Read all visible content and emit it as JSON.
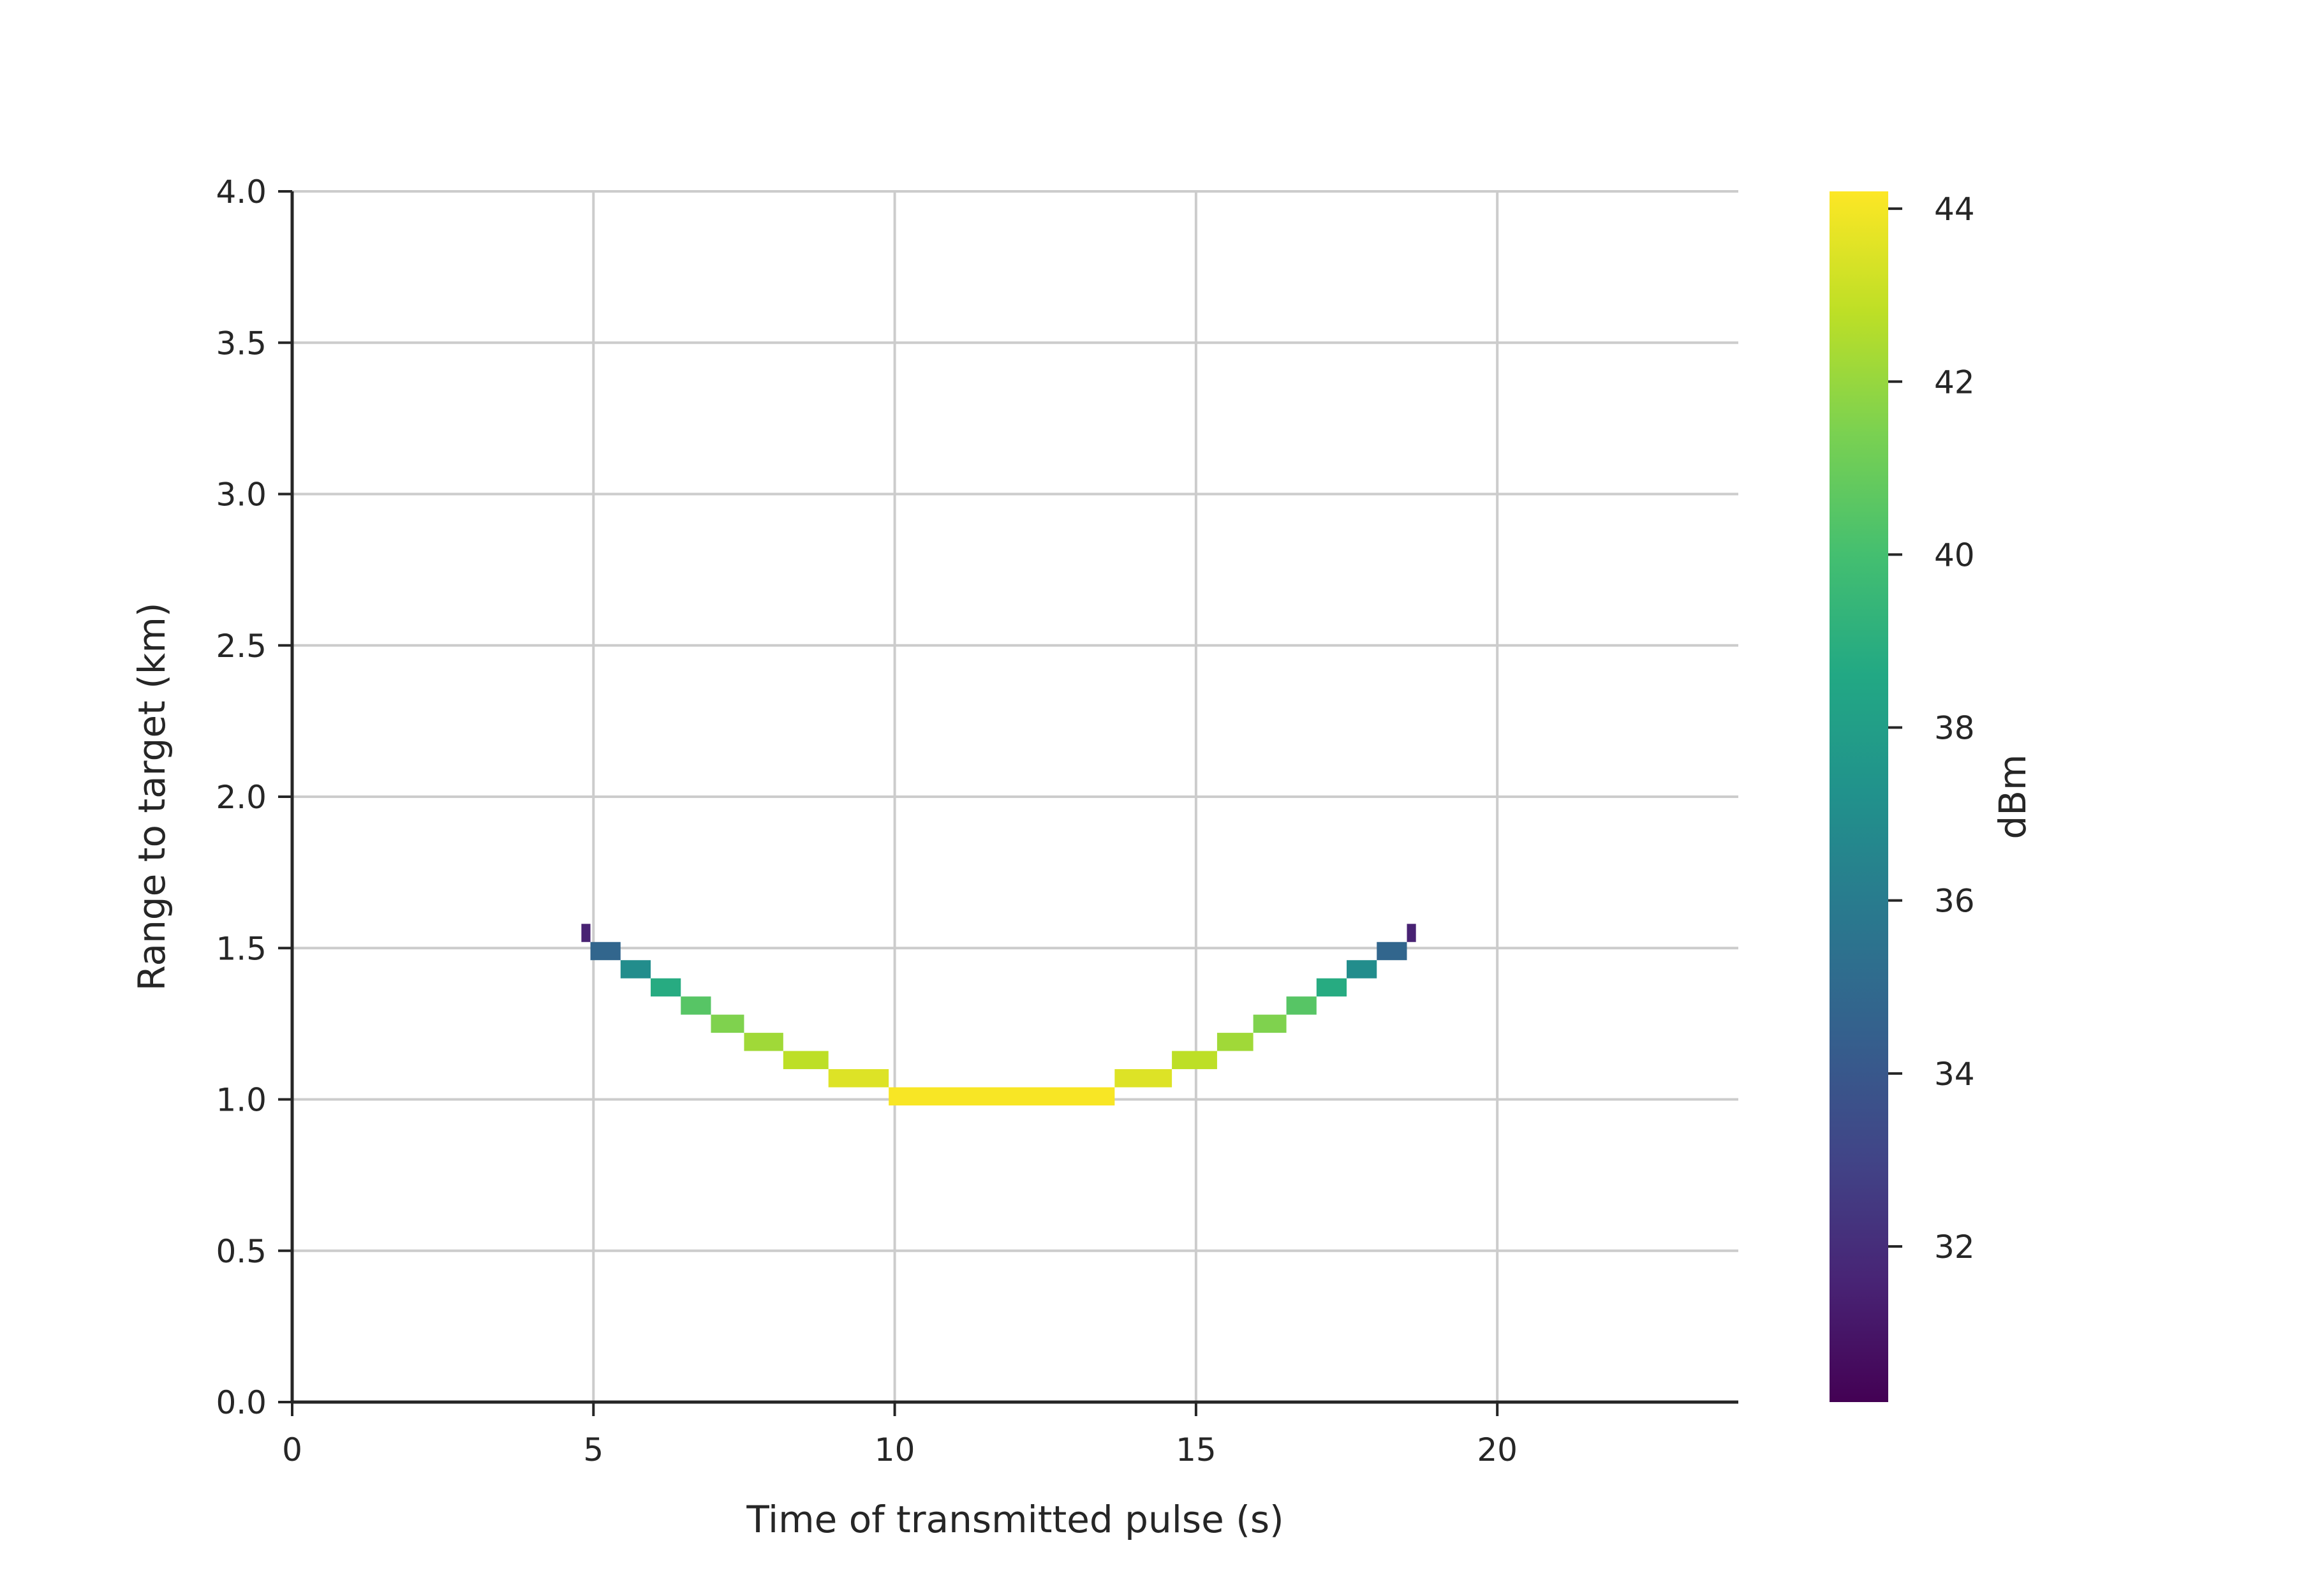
{
  "chart_data": {
    "type": "heatmap",
    "title": "",
    "xlabel": "Time of transmitted pulse  (s)",
    "ylabel": "Range to target  (km)",
    "xlim": [
      0,
      24
    ],
    "ylim": [
      0,
      4
    ],
    "xticks": [
      0,
      5,
      10,
      15,
      20
    ],
    "xtick_labels": [
      "0",
      "5",
      "10",
      "15",
      "20"
    ],
    "yticks": [
      0,
      0.5,
      1,
      1.5,
      2,
      2.5,
      3,
      3.5,
      4
    ],
    "ytick_labels": [
      "0.0",
      "0.5",
      "1.0",
      "1.5",
      "2.0",
      "2.5",
      "3.0",
      "3.5",
      "4.0"
    ],
    "grid": true,
    "colormap": "viridis",
    "colorbar": {
      "label": "dBm",
      "min": 30.2,
      "max": 44.2,
      "ticks": [
        32,
        34,
        36,
        38,
        40,
        42,
        44
      ],
      "tick_labels": [
        "32",
        "34",
        "36",
        "38",
        "40",
        "42",
        "44"
      ]
    },
    "cells": [
      {
        "x0": 4.8,
        "x1": 4.95,
        "y0": 1.52,
        "y1": 1.58,
        "value": 31.5
      },
      {
        "x0": 4.95,
        "x1": 5.45,
        "y0": 1.46,
        "y1": 1.52,
        "value": 34.8
      },
      {
        "x0": 5.45,
        "x1": 5.95,
        "y0": 1.4,
        "y1": 1.46,
        "value": 37.0
      },
      {
        "x0": 5.95,
        "x1": 6.45,
        "y0": 1.34,
        "y1": 1.4,
        "value": 38.8
      },
      {
        "x0": 6.45,
        "x1": 6.95,
        "y0": 1.28,
        "y1": 1.34,
        "value": 40.5
      },
      {
        "x0": 6.95,
        "x1": 7.5,
        "y0": 1.22,
        "y1": 1.28,
        "value": 41.5
      },
      {
        "x0": 7.5,
        "x1": 8.15,
        "y0": 1.16,
        "y1": 1.22,
        "value": 42.2
      },
      {
        "x0": 8.15,
        "x1": 8.9,
        "y0": 1.1,
        "y1": 1.16,
        "value": 42.8
      },
      {
        "x0": 8.9,
        "x1": 9.9,
        "y0": 1.04,
        "y1": 1.1,
        "value": 43.5
      },
      {
        "x0": 9.9,
        "x1": 13.65,
        "y0": 0.98,
        "y1": 1.04,
        "value": 44.1
      },
      {
        "x0": 13.65,
        "x1": 14.6,
        "y0": 1.04,
        "y1": 1.1,
        "value": 43.5
      },
      {
        "x0": 14.6,
        "x1": 15.35,
        "y0": 1.1,
        "y1": 1.16,
        "value": 42.8
      },
      {
        "x0": 15.35,
        "x1": 15.95,
        "y0": 1.16,
        "y1": 1.22,
        "value": 42.2
      },
      {
        "x0": 15.95,
        "x1": 16.5,
        "y0": 1.22,
        "y1": 1.28,
        "value": 41.5
      },
      {
        "x0": 16.5,
        "x1": 17.0,
        "y0": 1.28,
        "y1": 1.34,
        "value": 40.5
      },
      {
        "x0": 17.0,
        "x1": 17.5,
        "y0": 1.34,
        "y1": 1.4,
        "value": 38.8
      },
      {
        "x0": 17.5,
        "x1": 18.0,
        "y0": 1.4,
        "y1": 1.46,
        "value": 37.0
      },
      {
        "x0": 18.0,
        "x1": 18.5,
        "y0": 1.46,
        "y1": 1.52,
        "value": 34.8
      },
      {
        "x0": 18.5,
        "x1": 18.65,
        "y0": 1.52,
        "y1": 1.58,
        "value": 31.5
      }
    ]
  }
}
